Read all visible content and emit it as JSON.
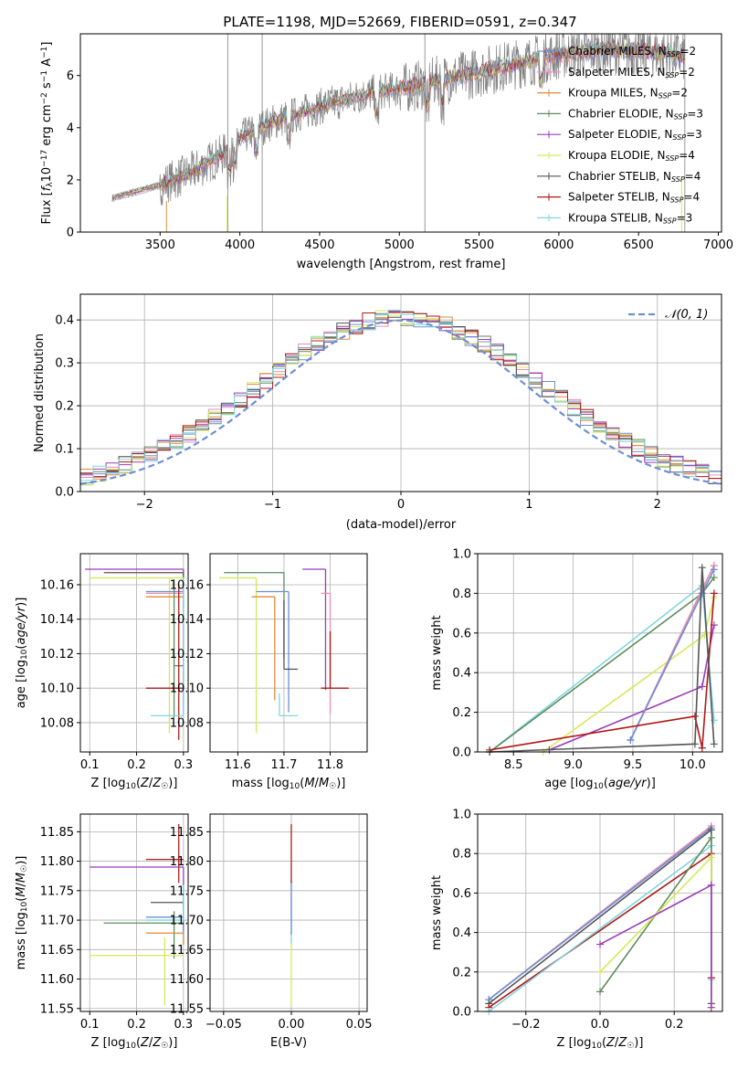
{
  "figure": {
    "title": "PLATE=1198, MJD=52669, FIBERID=0591, z=0.347"
  },
  "series_colors": {
    "Chabrier MILES": "#6b8fd6",
    "Salpeter MILES": "#e88fb8",
    "Kroupa MILES": "#e08a3c",
    "Chabrier ELODIE": "#5e8c5e",
    "Salpeter ELODIE": "#9b3cb8",
    "Kroupa ELODIE": "#d6e85a",
    "Chabrier STELIB": "#555555",
    "Salpeter STELIB": "#b01818",
    "Kroupa STELIB": "#7fd6e0",
    "data_gray": "#808080",
    "normal_curve": "#6b8fd6"
  },
  "chart_data": [
    {
      "id": "spectrum",
      "type": "line",
      "xlabel": "wavelength [Angstrom, rest frame]",
      "ylabel": "Flux [f_λ 10^-17 erg cm^-2 s^-1 A^-1]",
      "xlim": [
        3000,
        7020
      ],
      "ylim": [
        0,
        7.6
      ],
      "xticks": [
        3500,
        4000,
        4500,
        5000,
        5500,
        6000,
        6500,
        7000
      ],
      "yticks": [
        0,
        2,
        4,
        6
      ],
      "grid": false,
      "legend_placement": "top-right",
      "legend": [
        {
          "label": "Chabrier MILES, N",
          "sub": "SSP",
          "suffix": "=2",
          "series": "Chabrier MILES"
        },
        {
          "label": "Salpeter MILES, N",
          "sub": "SSP",
          "suffix": "=2",
          "series": "Salpeter MILES"
        },
        {
          "label": "Kroupa MILES, N",
          "sub": "SSP",
          "suffix": "=2",
          "series": "Kroupa MILES"
        },
        {
          "label": "Chabrier ELODIE, N",
          "sub": "SSP",
          "suffix": "=3",
          "series": "Chabrier ELODIE"
        },
        {
          "label": "Salpeter ELODIE, N",
          "sub": "SSP",
          "suffix": "=3",
          "series": "Salpeter ELODIE"
        },
        {
          "label": "Kroupa ELODIE, N",
          "sub": "SSP",
          "suffix": "=4",
          "series": "Kroupa ELODIE"
        },
        {
          "label": "Chabrier STELIB, N",
          "sub": "SSP",
          "suffix": "=4",
          "series": "Chabrier STELIB"
        },
        {
          "label": "Salpeter STELIB, N",
          "sub": "SSP",
          "suffix": "=4",
          "series": "Salpeter STELIB"
        },
        {
          "label": "Kroupa STELIB, N",
          "sub": "SSP",
          "suffix": "=3",
          "series": "Kroupa STELIB"
        }
      ],
      "continuum": {
        "x": [
          3200,
          3500,
          3700,
          3900,
          4000,
          4200,
          4500,
          4800,
          5100,
          5400,
          5700,
          6000,
          6300,
          6600,
          6800
        ],
        "y": [
          1.3,
          1.8,
          2.3,
          3.0,
          3.6,
          4.2,
          4.8,
          5.3,
          5.6,
          6.0,
          6.4,
          6.8,
          7.0,
          6.9,
          6.7
        ]
      }
    },
    {
      "id": "residuals",
      "type": "line",
      "xlabel": "(data-model)/error",
      "ylabel": "Normed distribution",
      "xlim": [
        -2.5,
        2.5
      ],
      "ylim": [
        0,
        0.46
      ],
      "xticks": [
        -2,
        -1,
        0,
        1,
        2
      ],
      "yticks": [
        0.0,
        0.1,
        0.2,
        0.3,
        0.4
      ],
      "grid": true,
      "legend_placement": "top-right",
      "legend_label": "𝒩(0, 1)",
      "normal": {
        "mu": 0,
        "sigma": 1
      }
    },
    {
      "id": "age_vs_Z",
      "type": "scatter",
      "xlabel": "Z [log10(Z/Z☉)]",
      "ylabel": "age [log10(age/yr)]",
      "xlim": [
        0.08,
        0.31
      ],
      "ylim": [
        10.063,
        10.178
      ],
      "xticks": [
        0.1,
        0.2,
        0.3
      ],
      "yticks": [
        10.08,
        10.1,
        10.12,
        10.14,
        10.16
      ],
      "grid": true,
      "points": [
        {
          "series": "Salpeter ELODIE",
          "x": 0.3,
          "y": 10.169,
          "xerr": [
            0.21,
            0.0
          ],
          "yerr": [
            0.07,
            0.0
          ]
        },
        {
          "series": "Chabrier STELIB",
          "x": 0.3,
          "y": 10.167,
          "xerr": [
            0.17,
            0.0
          ],
          "yerr": [
            0.02,
            0.0
          ]
        },
        {
          "series": "Kroupa ELODIE",
          "x": 0.27,
          "y": 10.164,
          "xerr": [
            0.17,
            0.03
          ],
          "yerr": [
            0.09,
            0.0
          ]
        },
        {
          "series": "Chabrier MILES",
          "x": 0.3,
          "y": 10.156,
          "xerr": [
            0.08,
            0.0
          ],
          "yerr": [
            0.07,
            0.0
          ]
        },
        {
          "series": "Salpeter MILES",
          "x": 0.3,
          "y": 10.155,
          "xerr": [
            0.08,
            0.0
          ],
          "yerr": [
            0.07,
            0.0
          ]
        },
        {
          "series": "Kroupa MILES",
          "x": 0.3,
          "y": 10.153,
          "xerr": [
            0.08,
            0.0
          ],
          "yerr": [
            0.06,
            0.0
          ]
        },
        {
          "series": "Chabrier ELODIE",
          "x": 0.28,
          "y": 10.113,
          "xerr": [
            0.0,
            0.02
          ],
          "yerr": [
            0.03,
            0.05
          ]
        },
        {
          "series": "Salpeter STELIB",
          "x": 0.29,
          "y": 10.1,
          "xerr": [
            0.07,
            0.01
          ],
          "yerr": [
            0.03,
            0.06
          ]
        },
        {
          "series": "Kroupa STELIB",
          "x": 0.3,
          "y": 10.084,
          "xerr": [
            0.07,
            0.0
          ],
          "yerr": [
            0.0,
            0.08
          ]
        }
      ]
    },
    {
      "id": "age_vs_mass",
      "type": "scatter",
      "xlabel": "mass [log10(M/M☉)]",
      "ylabel": "",
      "xlim": [
        11.54,
        11.88
      ],
      "ylim": [
        10.063,
        10.178
      ],
      "xticks": [
        11.6,
        11.7,
        11.8
      ],
      "yticks": [
        10.08,
        10.1,
        10.12,
        10.14,
        10.16
      ],
      "grid": true,
      "points": [
        {
          "series": "Salpeter ELODIE",
          "x": 11.79,
          "y": 10.169,
          "xerr": [
            0.05,
            0.0
          ],
          "yerr": [
            0.07,
            0.0
          ]
        },
        {
          "series": "Chabrier ELODIE",
          "x": 11.7,
          "y": 10.167,
          "xerr": [
            0.13,
            0.0
          ],
          "yerr": [
            0.05,
            0.0
          ]
        },
        {
          "series": "Kroupa ELODIE",
          "x": 11.64,
          "y": 10.164,
          "xerr": [
            0.08,
            0.0
          ],
          "yerr": [
            0.09,
            0.0
          ]
        },
        {
          "series": "Chabrier MILES",
          "x": 11.71,
          "y": 10.156,
          "xerr": [
            0.07,
            0.0
          ],
          "yerr": [
            0.07,
            0.0
          ]
        },
        {
          "series": "Salpeter MILES",
          "x": 11.8,
          "y": 10.155,
          "xerr": [
            0.02,
            0.0
          ],
          "yerr": [
            0.07,
            0.0
          ]
        },
        {
          "series": "Kroupa MILES",
          "x": 11.68,
          "y": 10.153,
          "xerr": [
            0.05,
            0.0
          ],
          "yerr": [
            0.06,
            0.0
          ]
        },
        {
          "series": "Chabrier STELIB",
          "x": 11.7,
          "y": 10.111,
          "xerr": [
            0.0,
            0.03
          ],
          "yerr": [
            0.0,
            0.04
          ]
        },
        {
          "series": "Salpeter STELIB",
          "x": 11.8,
          "y": 10.1,
          "xerr": [
            0.02,
            0.04
          ],
          "yerr": [
            0.0,
            0.033
          ]
        },
        {
          "series": "Kroupa STELIB",
          "x": 11.69,
          "y": 10.084,
          "xerr": [
            0.0,
            0.04
          ],
          "yerr": [
            0.0,
            0.013
          ]
        }
      ]
    },
    {
      "id": "weight_vs_age",
      "type": "line",
      "xlabel": "age [log10(age/yr)]",
      "ylabel": "mass weight",
      "xlim": [
        8.2,
        10.25
      ],
      "ylim": [
        0,
        1.0
      ],
      "xticks": [
        8.5,
        9.0,
        9.5,
        10.0
      ],
      "yticks": [
        0.0,
        0.2,
        0.4,
        0.6,
        0.8,
        1.0
      ],
      "grid": true,
      "series": [
        {
          "name": "Kroupa STELIB",
          "x": [
            8.3,
            10.08,
            10.18
          ],
          "y": [
            0.0,
            0.84,
            0.16
          ]
        },
        {
          "name": "Chabrier ELODIE",
          "x": [
            8.3,
            10.08,
            10.18
          ],
          "y": [
            0.0,
            0.8,
            0.88
          ]
        },
        {
          "name": "Kroupa ELODIE",
          "x": [
            8.75,
            10.1,
            10.18
          ],
          "y": [
            0.0,
            0.59,
            0.78
          ]
        },
        {
          "name": "Salpeter ELODIE",
          "x": [
            8.8,
            10.08,
            10.18
          ],
          "y": [
            0.01,
            0.33,
            0.64
          ]
        },
        {
          "name": "Kroupa MILES",
          "x": [
            9.48,
            10.08,
            10.18
          ],
          "y": [
            0.06,
            0.82,
            0.94
          ]
        },
        {
          "name": "Salpeter MILES",
          "x": [
            9.48,
            10.08,
            10.18
          ],
          "y": [
            0.06,
            0.82,
            0.94
          ]
        },
        {
          "name": "Chabrier MILES",
          "x": [
            9.48,
            10.08,
            10.18
          ],
          "y": [
            0.06,
            0.8,
            0.92
          ]
        },
        {
          "name": "Salpeter STELIB",
          "x": [
            8.3,
            10.02,
            10.08,
            10.18
          ],
          "y": [
            0.01,
            0.18,
            0.02,
            0.8
          ]
        },
        {
          "name": "Chabrier STELIB",
          "x": [
            8.3,
            10.02,
            10.08,
            10.18
          ],
          "y": [
            0.0,
            0.04,
            0.93,
            0.04
          ]
        }
      ]
    },
    {
      "id": "mass_vs_Z",
      "type": "scatter",
      "xlabel": "Z [log10(Z/Z☉)]",
      "ylabel": "mass [log10(M/M☉)]",
      "xlim": [
        0.08,
        0.31
      ],
      "ylim": [
        11.545,
        11.88
      ],
      "xticks": [
        0.1,
        0.2,
        0.3
      ],
      "yticks": [
        11.55,
        11.6,
        11.65,
        11.7,
        11.75,
        11.8,
        11.85
      ],
      "grid": true,
      "points": [
        {
          "series": "Salpeter STELIB",
          "x": 0.29,
          "y": 11.803,
          "xerr": [
            0.07,
            0.01
          ],
          "yerr": [
            0.04,
            0.06
          ]
        },
        {
          "series": "Salpeter ELODIE",
          "x": 0.3,
          "y": 11.79,
          "xerr": [
            0.2,
            0.0
          ],
          "yerr": [
            0.07,
            0.0
          ]
        },
        {
          "series": "Chabrier STELIB",
          "x": 0.3,
          "y": 11.73,
          "xerr": [
            0.07,
            0.0
          ],
          "yerr": [
            0.05,
            0.0
          ]
        },
        {
          "series": "Chabrier MILES",
          "x": 0.3,
          "y": 11.705,
          "xerr": [
            0.08,
            0.0
          ],
          "yerr": [
            0.03,
            0.0
          ]
        },
        {
          "series": "Kroupa STELIB",
          "x": 0.3,
          "y": 11.7,
          "xerr": [
            0.08,
            0.0
          ],
          "yerr": [
            0.0,
            0.06
          ]
        },
        {
          "series": "Chabrier ELODIE",
          "x": 0.28,
          "y": 11.695,
          "xerr": [
            0.15,
            0.02
          ],
          "yerr": [
            0.06,
            0.02
          ]
        },
        {
          "series": "Kroupa MILES",
          "x": 0.3,
          "y": 11.678,
          "xerr": [
            0.08,
            0.0
          ],
          "yerr": [
            0.02,
            0.0
          ]
        },
        {
          "series": "Kroupa ELODIE",
          "x": 0.26,
          "y": 11.64,
          "xerr": [
            0.16,
            0.04
          ],
          "yerr": [
            0.085,
            0.03
          ]
        }
      ]
    },
    {
      "id": "mass_vs_ebv",
      "type": "scatter",
      "xlabel": "E(B-V)",
      "ylabel": "",
      "xlim": [
        -0.06,
        0.056
      ],
      "ylim": [
        11.545,
        11.88
      ],
      "xticks": [
        -0.05,
        0.0,
        0.05
      ],
      "xticklabels": [
        "−0.05",
        "0.00",
        "0.05"
      ],
      "yticks": [
        11.55,
        11.6,
        11.65,
        11.7,
        11.75,
        11.8,
        11.85
      ],
      "grid": true,
      "points": [
        {
          "series": "Kroupa ELODIE",
          "x": 0.0,
          "y": 11.64,
          "xerr": [
            0,
            0
          ],
          "yerr": [
            0.085,
            0.03
          ]
        },
        {
          "series": "Kroupa STELIB",
          "x": 0.0,
          "y": 11.7,
          "xerr": [
            0,
            0
          ],
          "yerr": [
            0.04,
            0.07
          ]
        },
        {
          "series": "Chabrier MILES",
          "x": 0.0,
          "y": 11.705,
          "xerr": [
            0,
            0
          ],
          "yerr": [
            0.03,
            0.06
          ]
        },
        {
          "series": "Salpeter STELIB",
          "x": 0.0,
          "y": 11.803,
          "xerr": [
            0,
            0
          ],
          "yerr": [
            0.04,
            0.06
          ]
        }
      ]
    },
    {
      "id": "weight_vs_Z",
      "type": "line",
      "xlabel": "Z [log10(Z/Z☉)]",
      "ylabel": "mass weight",
      "xlim": [
        -0.33,
        0.33
      ],
      "ylim": [
        0,
        1.0
      ],
      "xticks": [
        -0.2,
        0.0,
        0.2
      ],
      "xticklabels": [
        "−0.2",
        "0.0",
        "0.2"
      ],
      "yticks": [
        0.0,
        0.2,
        0.4,
        0.6,
        0.8,
        1.0
      ],
      "grid": true,
      "series": [
        {
          "name": "Kroupa MILES",
          "x": [
            -0.3,
            0.3
          ],
          "y": [
            0.06,
            0.94
          ]
        },
        {
          "name": "Salpeter MILES",
          "x": [
            -0.3,
            0.3,
            0.3
          ],
          "y": [
            0.06,
            0.94,
            0.17
          ]
        },
        {
          "name": "Chabrier MILES",
          "x": [
            -0.3,
            0.3
          ],
          "y": [
            0.06,
            0.93
          ]
        },
        {
          "name": "Chabrier STELIB",
          "x": [
            -0.3,
            0.3,
            0.3
          ],
          "y": [
            0.04,
            0.92,
            0.04
          ]
        },
        {
          "name": "Salpeter STELIB",
          "x": [
            -0.3,
            0.3,
            0.3
          ],
          "y": [
            0.02,
            0.8,
            0.17
          ]
        },
        {
          "name": "Kroupa STELIB",
          "x": [
            -0.3,
            0.3,
            0.3
          ],
          "y": [
            0.0,
            0.84,
            0.16
          ]
        },
        {
          "name": "Chabrier ELODIE",
          "x": [
            0.0,
            0.3,
            0.3
          ],
          "y": [
            0.1,
            0.88,
            0.02
          ]
        },
        {
          "name": "Kroupa ELODIE",
          "x": [
            0.0,
            0.3,
            0.3
          ],
          "y": [
            0.2,
            0.78,
            0.02
          ]
        },
        {
          "name": "Salpeter ELODIE",
          "x": [
            0.0,
            0.3,
            0.3
          ],
          "y": [
            0.34,
            0.64,
            0.02
          ]
        }
      ]
    }
  ]
}
